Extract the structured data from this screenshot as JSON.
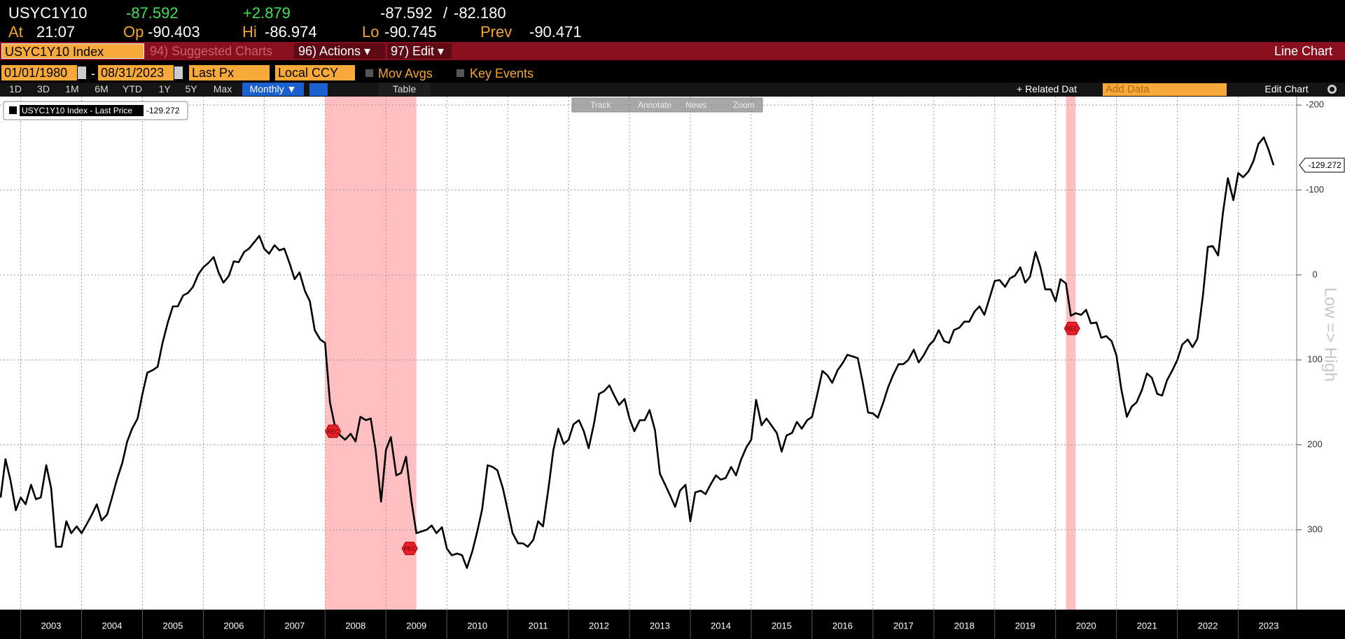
{
  "header": {
    "ticker": "USYC1Y10",
    "last": "-87.592",
    "change": "+2.879",
    "bid": "-87.592",
    "sep": "/",
    "ask": "-82.180",
    "at_label": "At",
    "at": "21:07",
    "op_label": "Op",
    "op": "-90.403",
    "hi_label": "Hi",
    "hi": "-86.974",
    "lo_label": "Lo",
    "lo": "-90.745",
    "prev_label": "Prev",
    "prev": "-90.471"
  },
  "menu": {
    "security": "USYC1Y10 Index",
    "suggested": "94) Suggested Charts",
    "actions": "96) Actions ▾",
    "edit": "97) Edit ▾",
    "title": "Line Chart"
  },
  "settings": {
    "start": "01/01/1980",
    "dash": "-",
    "end": "08/31/2023",
    "field": "Last Px",
    "currency": "Local CCY",
    "mov_avgs": "Mov Avgs",
    "key_events": "Key Events"
  },
  "periods": [
    "1D",
    "3D",
    "1M",
    "6M",
    "YTD",
    "1Y",
    "5Y",
    "Max"
  ],
  "frequency": "Monthly ▼",
  "table": "Table",
  "related": "+ Related Dat",
  "add_data": "Add Data",
  "edit_chart": "Edit Chart",
  "chart_tools": [
    "Track",
    "Annotate",
    "News",
    "Zoom"
  ],
  "chart_data": {
    "type": "line",
    "y_label": "Low => High",
    "x": [
      2002.67,
      2002.75,
      2002.83,
      2002.92,
      2003,
      2003.08,
      2003.17,
      2003.25,
      2003.33,
      2003.42,
      2003.5,
      2003.58,
      2003.67,
      2003.75,
      2003.83,
      2003.92,
      2004,
      2004.08,
      2004.17,
      2004.25,
      2004.33,
      2004.42,
      2004.5,
      2004.58,
      2004.67,
      2004.75,
      2004.83,
      2004.92,
      2005,
      2005.08,
      2005.17,
      2005.25,
      2005.33,
      2005.42,
      2005.5,
      2005.58,
      2005.67,
      2005.75,
      2005.83,
      2005.92,
      2006,
      2006.08,
      2006.17,
      2006.25,
      2006.33,
      2006.42,
      2006.5,
      2006.58,
      2006.67,
      2006.75,
      2006.83,
      2006.92,
      2007,
      2007.08,
      2007.17,
      2007.25,
      2007.33,
      2007.42,
      2007.5,
      2007.58,
      2007.67,
      2007.75,
      2007.83,
      2007.92,
      2008,
      2008.08,
      2008.17,
      2008.25,
      2008.33,
      2008.42,
      2008.5,
      2008.58,
      2008.67,
      2008.75,
      2008.83,
      2008.92,
      2009,
      2009.08,
      2009.17,
      2009.25,
      2009.33,
      2009.42,
      2009.5,
      2009.58,
      2009.67,
      2009.75,
      2009.83,
      2009.92,
      2010,
      2010.08,
      2010.17,
      2010.25,
      2010.33,
      2010.42,
      2010.5,
      2010.58,
      2010.67,
      2010.75,
      2010.83,
      2010.92,
      2011,
      2011.08,
      2011.17,
      2011.25,
      2011.33,
      2011.42,
      2011.5,
      2011.58,
      2011.67,
      2011.75,
      2011.83,
      2011.92,
      2012,
      2012.08,
      2012.17,
      2012.25,
      2012.33,
      2012.42,
      2012.5,
      2012.58,
      2012.67,
      2012.75,
      2012.83,
      2012.92,
      2013,
      2013.08,
      2013.17,
      2013.25,
      2013.33,
      2013.42,
      2013.5,
      2013.58,
      2013.67,
      2013.75,
      2013.83,
      2013.92,
      2014,
      2014.08,
      2014.17,
      2014.25,
      2014.33,
      2014.42,
      2014.5,
      2014.58,
      2014.67,
      2014.75,
      2014.83,
      2014.92,
      2015,
      2015.08,
      2015.17,
      2015.25,
      2015.33,
      2015.42,
      2015.5,
      2015.58,
      2015.67,
      2015.75,
      2015.83,
      2015.92,
      2016,
      2016.08,
      2016.17,
      2016.25,
      2016.33,
      2016.42,
      2016.5,
      2016.58,
      2016.67,
      2016.75,
      2016.83,
      2016.92,
      2017,
      2017.08,
      2017.17,
      2017.25,
      2017.33,
      2017.42,
      2017.5,
      2017.58,
      2017.67,
      2017.75,
      2017.83,
      2017.92,
      2018,
      2018.08,
      2018.17,
      2018.25,
      2018.33,
      2018.42,
      2018.5,
      2018.58,
      2018.67,
      2018.75,
      2018.83,
      2018.92,
      2019,
      2019.08,
      2019.17,
      2019.25,
      2019.33,
      2019.42,
      2019.5,
      2019.58,
      2019.67,
      2019.75,
      2019.83,
      2019.92,
      2020,
      2020.08,
      2020.17,
      2020.25,
      2020.33,
      2020.42,
      2020.5,
      2020.58,
      2020.67,
      2020.75,
      2020.83,
      2020.92,
      2021,
      2021.08,
      2021.17,
      2021.25,
      2021.33,
      2021.42,
      2021.5,
      2021.58,
      2021.67,
      2021.75,
      2021.83,
      2021.92,
      2022,
      2022.08,
      2022.17,
      2022.25,
      2022.33,
      2022.42,
      2022.5,
      2022.58,
      2022.67,
      2022.75,
      2022.83,
      2022.92,
      2023,
      2023.08,
      2023.17,
      2023.25,
      2023.33,
      2023.42,
      2023.5,
      2023.58
    ],
    "series": [
      {
        "name": "USYC1Y10 Index - Last Price",
        "color": "#000000",
        "values": [
          262,
          217,
          241,
          277,
          262,
          270,
          247,
          264,
          262,
          224,
          251,
          320,
          320,
          290,
          304,
          296,
          304,
          294,
          282,
          270,
          289,
          282,
          262,
          241,
          221,
          196,
          181,
          169,
          140,
          115,
          112,
          108,
          80,
          55,
          37,
          37,
          24,
          21,
          14,
          -1,
          -9,
          -14,
          -21,
          -3,
          9,
          1,
          -16,
          -15,
          -27,
          -31,
          -38,
          -46,
          -31,
          -25,
          -35,
          -29,
          -31,
          -13,
          5,
          -3,
          19,
          31,
          65,
          76,
          80,
          150,
          181,
          189,
          194,
          187,
          196,
          167,
          171,
          169,
          206,
          267,
          206,
          191,
          236,
          233,
          214,
          267,
          304,
          302,
          300,
          295,
          304,
          297,
          322,
          330,
          328,
          330,
          345,
          325,
          302,
          276,
          224,
          226,
          230,
          251,
          277,
          304,
          316,
          316,
          320,
          312,
          290,
          296,
          251,
          206,
          181,
          199,
          194,
          176,
          171,
          184,
          204,
          174,
          140,
          137,
          130,
          142,
          153,
          146,
          169,
          184,
          171,
          171,
          159,
          183,
          234,
          246,
          260,
          273,
          254,
          247,
          290,
          256,
          254,
          258,
          247,
          236,
          241,
          239,
          226,
          236,
          218,
          203,
          194,
          147,
          177,
          169,
          177,
          186,
          208,
          189,
          186,
          173,
          181,
          171,
          167,
          142,
          113,
          118,
          127,
          112,
          104,
          94,
          96,
          98,
          126,
          162,
          163,
          168,
          150,
          132,
          118,
          105,
          105,
          100,
          88,
          103,
          95,
          83,
          77,
          65,
          78,
          80,
          65,
          62,
          55,
          55,
          43,
          37,
          47,
          26,
          7,
          6,
          14,
          4,
          1,
          -9,
          9,
          2,
          -27,
          -9,
          17,
          17,
          31,
          5,
          10,
          48,
          45,
          47,
          41,
          57,
          56,
          74,
          72,
          78,
          95,
          135,
          167,
          155,
          150,
          135,
          116,
          121,
          140,
          142,
          124,
          112,
          100,
          82,
          76,
          85,
          75,
          24,
          -33,
          -34,
          -23,
          -74,
          -114,
          -88,
          -120,
          -115,
          -122,
          -134,
          -154,
          -162,
          -147,
          -129.272
        ]
      }
    ],
    "xlim": [
      2002.66,
      2023.96
    ],
    "xticks": [
      2003,
      2004,
      2005,
      2006,
      2007,
      2008,
      2009,
      2010,
      2011,
      2012,
      2013,
      2014,
      2015,
      2016,
      2017,
      2018,
      2019,
      2020,
      2021,
      2022,
      2023
    ],
    "ylim": [
      -210,
      394
    ],
    "inverted": true,
    "yticks": [
      -200,
      -100,
      0,
      100,
      200,
      300
    ],
    "grid": true,
    "shaded_regions": [
      [
        2008,
        2009.5
      ],
      [
        2020.17,
        2020.33
      ]
    ],
    "shade_color": "#ffb3b5",
    "annotations": [
      {
        "text": "REC",
        "x": 2008.13,
        "y": 184
      },
      {
        "text": "REC",
        "x": 2009.39,
        "y": 322
      },
      {
        "text": "REC",
        "x": 2020.27,
        "y": 63
      }
    ]
  }
}
